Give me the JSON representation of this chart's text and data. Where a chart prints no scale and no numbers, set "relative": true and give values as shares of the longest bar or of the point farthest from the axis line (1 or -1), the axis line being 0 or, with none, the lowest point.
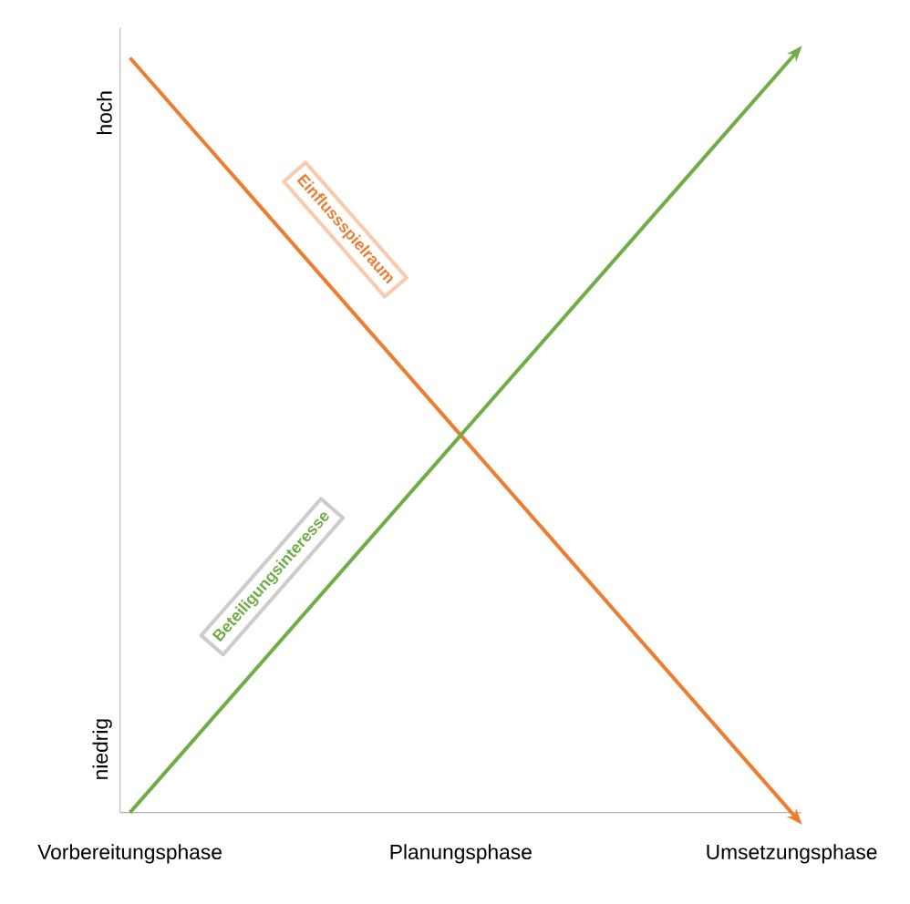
{
  "chart_data": {
    "type": "line",
    "relative": true,
    "categories": [
      "Vorbereitungsphase",
      "Planungsphase",
      "Umsetzungsphase"
    ],
    "series": [
      {
        "name": "Einflussspielraum",
        "color": "#ed7d31",
        "values": [
          1,
          0.5,
          0
        ]
      },
      {
        "name": "Beteiligungsinteresse",
        "color": "#70ad47",
        "values": [
          0,
          0.5,
          1
        ]
      }
    ],
    "annotations": [
      "hoch",
      "niedrig"
    ],
    "grid": false,
    "marker": "none",
    "line_style": "solid"
  }
}
